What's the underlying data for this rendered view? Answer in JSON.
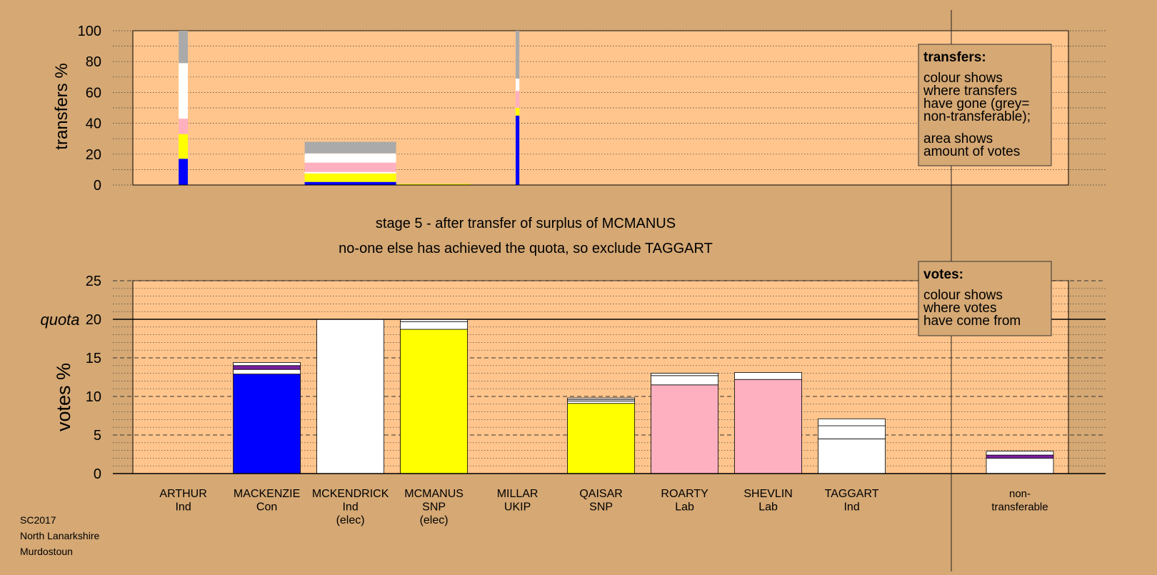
{
  "stage_title": "stage 5 - after transfer of surplus of MCMANUS",
  "stage_subtitle": "no-one else has achieved the quota, so exclude TAGGART",
  "footer": [
    "SC2017",
    "North Lanarkshire",
    "Murdostoun"
  ],
  "legend_transfers": {
    "title": "transfers:",
    "lines": [
      "colour shows",
      "where transfers",
      "have gone (grey=",
      "non-transferable);",
      "area shows",
      "amount of votes"
    ]
  },
  "legend_votes": {
    "title": "votes:",
    "lines": [
      "colour shows",
      "where votes",
      "have come from"
    ]
  },
  "colors": {
    "background": "#d5a874",
    "plot_bg": "#ffc58d",
    "blue": "#0000ff",
    "yellow": "#ffff00",
    "pink": "#ffb0c0",
    "white": "#ffffff",
    "grey": "#aaaaaa",
    "purple": "#7a1fa2"
  },
  "chart_data": [
    {
      "type": "bar",
      "ylabel": "transfers %",
      "ylim": [
        0,
        100
      ],
      "yticks": [
        0,
        20,
        40,
        60,
        80,
        100
      ],
      "grid": true,
      "bars": [
        {
          "candidate": "ARTHUR",
          "width": 0.1,
          "segments": [
            {
              "color": "blue",
              "value": 17
            },
            {
              "color": "yellow",
              "value": 16
            },
            {
              "color": "pink",
              "value": 10
            },
            {
              "color": "white",
              "value": 36
            },
            {
              "color": "grey",
              "value": 21
            }
          ]
        },
        {
          "candidate": "MCKENDRICK",
          "width": 1.0,
          "segments": [
            {
              "color": "blue",
              "value": 2
            },
            {
              "color": "yellow",
              "value": 5.5
            },
            {
              "color": "white",
              "value": 1
            },
            {
              "color": "pink",
              "value": 6
            },
            {
              "color": "white",
              "value": 6
            },
            {
              "color": "grey",
              "value": 7.5
            }
          ]
        },
        {
          "candidate": "MCMANUS",
          "width": 0.8,
          "segments": [
            {
              "color": "yellow",
              "value": 0.7
            }
          ]
        },
        {
          "candidate": "MILLAR",
          "width": 0.04,
          "segments": [
            {
              "color": "blue",
              "value": 45
            },
            {
              "color": "yellow",
              "value": 5
            },
            {
              "color": "pink",
              "value": 11
            },
            {
              "color": "white",
              "value": 8
            },
            {
              "color": "grey",
              "value": 31
            }
          ]
        }
      ]
    },
    {
      "type": "bar",
      "ylabel": "votes %",
      "quota_label": "quota",
      "quota": 20,
      "ylim": [
        0,
        25
      ],
      "yticks": [
        0,
        5,
        10,
        15,
        20,
        25
      ],
      "grid": true,
      "categories": [
        {
          "name": "ARTHUR",
          "party": "Ind",
          "elected": ""
        },
        {
          "name": "MACKENZIE",
          "party": "Con",
          "elected": ""
        },
        {
          "name": "MCKENDRICK",
          "party": "Ind",
          "elected": "(elec)"
        },
        {
          "name": "MCMANUS",
          "party": "SNP",
          "elected": "(elec)"
        },
        {
          "name": "MILLAR",
          "party": "UKIP",
          "elected": ""
        },
        {
          "name": "QAISAR",
          "party": "SNP",
          "elected": ""
        },
        {
          "name": "ROARTY",
          "party": "Lab",
          "elected": ""
        },
        {
          "name": "SHEVLIN",
          "party": "Lab",
          "elected": ""
        },
        {
          "name": "TAGGART",
          "party": "Ind",
          "elected": ""
        }
      ],
      "nontransferable_label": [
        "non-",
        "transferable"
      ],
      "stacks": [
        {
          "candidate": "ARTHUR",
          "segments": []
        },
        {
          "candidate": "MACKENZIE",
          "segments": [
            {
              "color": "blue",
              "value": 12.9
            },
            {
              "color": "white",
              "value": 0.6
            },
            {
              "color": "purple",
              "value": 0.5
            },
            {
              "color": "white",
              "value": 0.4
            }
          ]
        },
        {
          "candidate": "MCKENDRICK",
          "segments": [
            {
              "color": "white",
              "value": 20.0
            }
          ]
        },
        {
          "candidate": "MCMANUS",
          "segments": [
            {
              "color": "yellow",
              "value": 18.7
            },
            {
              "color": "white",
              "value": 1.0
            },
            {
              "color": "white",
              "value": 0.3
            }
          ]
        },
        {
          "candidate": "MILLAR",
          "segments": []
        },
        {
          "candidate": "QAISAR",
          "segments": [
            {
              "color": "yellow",
              "value": 9.1
            },
            {
              "color": "white",
              "value": 0.3
            },
            {
              "color": "white",
              "value": 0.2
            },
            {
              "color": "white",
              "value": 0.2
            }
          ]
        },
        {
          "candidate": "ROARTY",
          "segments": [
            {
              "color": "pink",
              "value": 11.5
            },
            {
              "color": "white",
              "value": 1.2
            },
            {
              "color": "white",
              "value": 0.3
            }
          ]
        },
        {
          "candidate": "SHEVLIN",
          "segments": [
            {
              "color": "pink",
              "value": 12.2
            },
            {
              "color": "white",
              "value": 0.9
            }
          ]
        },
        {
          "candidate": "TAGGART",
          "segments": [
            {
              "color": "white",
              "value": 4.5
            },
            {
              "color": "white",
              "value": 1.7
            },
            {
              "color": "white",
              "value": 0.9
            }
          ]
        },
        {
          "candidate": "non-transferable",
          "segments": [
            {
              "color": "white",
              "value": 2.0
            },
            {
              "color": "purple",
              "value": 0.4
            },
            {
              "color": "white",
              "value": 0.5
            }
          ]
        }
      ]
    }
  ]
}
